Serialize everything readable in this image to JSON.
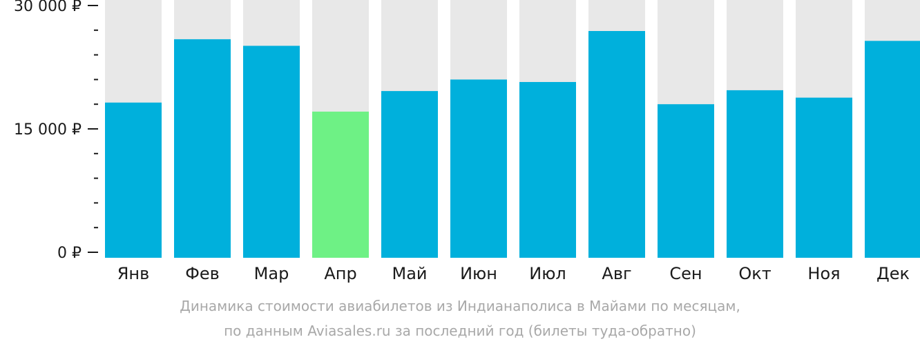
{
  "chart_data": {
    "type": "bar",
    "categories": [
      "Янв",
      "Фев",
      "Мар",
      "Апр",
      "Май",
      "Июн",
      "Июл",
      "Авг",
      "Сен",
      "Окт",
      "Ноя",
      "Дек"
    ],
    "values": [
      18200,
      25900,
      25100,
      17100,
      19600,
      21000,
      20700,
      26900,
      18000,
      19700,
      18800,
      25700
    ],
    "ylim": [
      0,
      30000
    ],
    "yticks": [
      {
        "value": 0,
        "label": "0 ₽"
      },
      {
        "value": 15000,
        "label": "15 000 ₽"
      },
      {
        "value": 30000,
        "label": "30 000 ₽"
      }
    ],
    "minor_tick_step": 3000,
    "highlight_index": 3,
    "colors": {
      "bar": "#00b0dc",
      "highlight": "#6ef185",
      "track": "#e8e8e8",
      "axis": "#1a1a1a"
    },
    "caption_line1": "Динамика стоимости авиабилетов из Индианаполиса в Майами по месяцам,",
    "caption_line2": "по данным Aviasales.ru за последний год (билеты туда-обратно)"
  }
}
